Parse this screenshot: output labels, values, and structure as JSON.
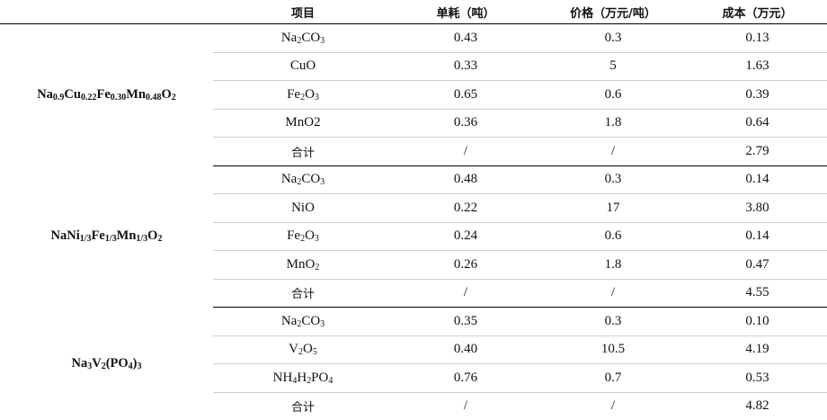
{
  "headers": [
    "",
    "项目",
    "单耗（吨）",
    "价格（万元/吨）",
    "成本（万元）"
  ],
  "groups": [
    {
      "material": "Na0.9Cu0.22Fe0.30Mn0.48O2",
      "rows": [
        {
          "item": "Na2CO3",
          "consumption": "0.43",
          "price": "0.3",
          "cost": "0.13"
        },
        {
          "item": "CuO",
          "consumption": "0.33",
          "price": "5",
          "cost": "1.63"
        },
        {
          "item": "Fe2O3",
          "consumption": "0.65",
          "price": "0.6",
          "cost": "0.39"
        },
        {
          "item": "MnO2",
          "consumption": "0.36",
          "price": "1.8",
          "cost": "0.64"
        },
        {
          "item": "合计",
          "consumption": "/",
          "price": "/",
          "cost": "2.79"
        }
      ]
    },
    {
      "material": "NaNi1/3Fe1/3Mn1/3O2",
      "rows": [
        {
          "item": "Na2CO3",
          "consumption": "0.48",
          "price": "0.3",
          "cost": "0.14"
        },
        {
          "item": "NiO",
          "consumption": "0.22",
          "price": "17",
          "cost": "3.80"
        },
        {
          "item": "Fe2O3",
          "consumption": "0.24",
          "price": "0.6",
          "cost": "0.14"
        },
        {
          "item": "MnO2",
          "consumption": "0.26",
          "price": "1.8",
          "cost": "0.47"
        },
        {
          "item": "合计",
          "consumption": "/",
          "price": "/",
          "cost": "4.55"
        }
      ]
    },
    {
      "material": "Na3V2(PO4)3",
      "rows": [
        {
          "item": "Na2CO3",
          "consumption": "0.35",
          "price": "0.3",
          "cost": "0.10"
        },
        {
          "item": "V2O5",
          "consumption": "0.40",
          "price": "10.5",
          "cost": "4.19"
        },
        {
          "item": "NH4H2PO4",
          "consumption": "0.76",
          "price": "0.7",
          "cost": "0.53"
        },
        {
          "item": "合计",
          "consumption": "/",
          "price": "/",
          "cost": "4.82"
        }
      ]
    }
  ]
}
